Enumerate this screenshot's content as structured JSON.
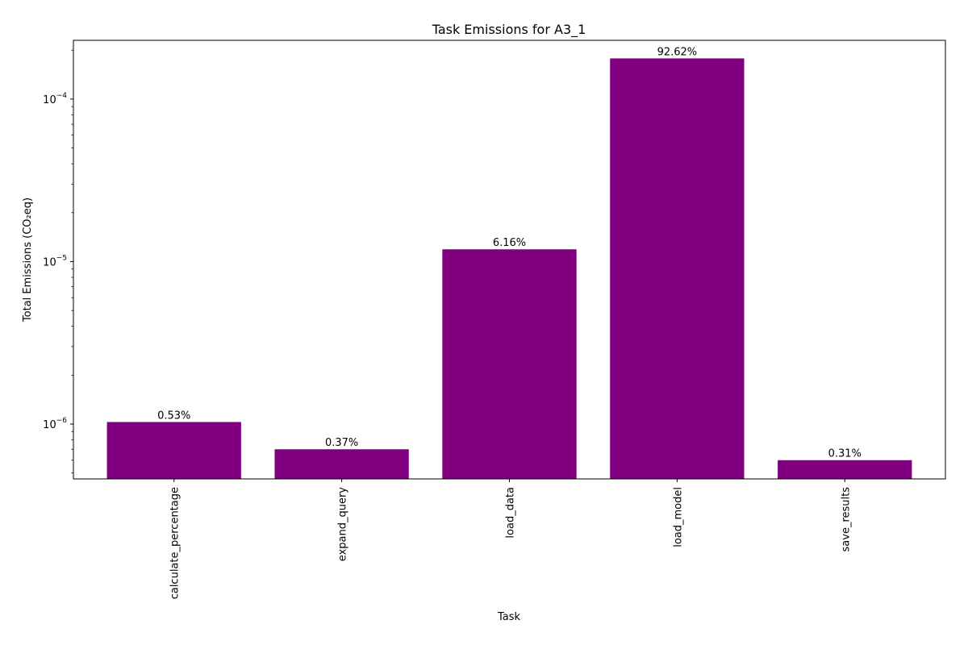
{
  "chart_data": {
    "type": "bar",
    "title": "Task Emissions for A3_1",
    "xlabel": "Task",
    "ylabel": "Total Emissions (CO₂eq)",
    "yscale": "log",
    "ylim": [
      4.6e-07,
      0.00023
    ],
    "categories": [
      "calculate_percentage",
      "expand_query",
      "load_data",
      "load_model",
      "save_results"
    ],
    "values": [
      1.03e-06,
      7e-07,
      1.19e-05,
      0.000178,
      6e-07
    ],
    "data_labels": [
      "0.53%",
      "0.37%",
      "6.16%",
      "92.62%",
      "0.31%"
    ],
    "ytick_major": [
      {
        "value": 1e-06,
        "base": "10",
        "exp": "−6"
      },
      {
        "value": 1e-05,
        "base": "10",
        "exp": "−5"
      },
      {
        "value": 0.0001,
        "base": "10",
        "exp": "−4"
      }
    ],
    "bar_color": "#800080",
    "grid": false,
    "legend": "none"
  }
}
